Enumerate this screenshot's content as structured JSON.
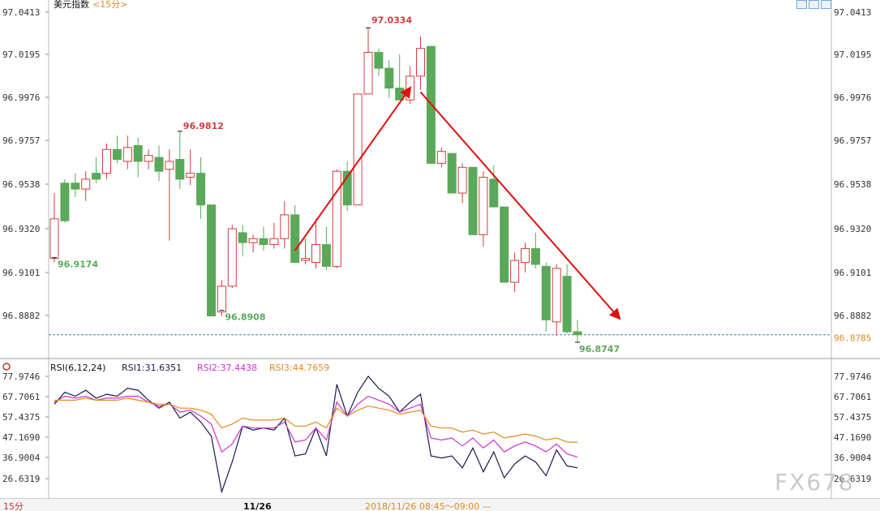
{
  "header": {
    "instrument": "美元指数",
    "period": "<15分>"
  },
  "rsi_header": {
    "name": "RSI(6,12,24)",
    "rsi1_label": "RSI1:31.6351",
    "rsi2_label": "RSI2:37.4438",
    "rsi3_label": "RSI3:44.7659"
  },
  "footer": {
    "period_button": "15分",
    "date_label": "11/26",
    "time_label": "2018/11/26 08:45～09:00 —"
  },
  "watermark": "FX678",
  "colors": {
    "up": "#d23c3c",
    "down": "#5aa85a",
    "rsi1": "#1a1a4a",
    "rsi2": "#cc33cc",
    "rsi3": "#e08a20",
    "arrow": "#e01010",
    "current_line": "#2a8aa0",
    "current_label": "#e08a20"
  },
  "chart_data": [
    {
      "type": "candlestick",
      "title": "美元指数<15分>",
      "y_tick_labels": [
        "97.0413",
        "97.0195",
        "96.9976",
        "96.9757",
        "96.9538",
        "96.9320",
        "96.9101",
        "96.8882"
      ],
      "ylim": [
        96.87,
        97.042
      ],
      "current_price": "96.8785",
      "annotations": {
        "high_1": "96.9812",
        "high_2": "97.0334",
        "low_1": "96.9174",
        "low_2": "96.8908",
        "low_3": "96.8747"
      },
      "candles": [
        {
          "o": 96.917,
          "h": 96.95,
          "l": 96.915,
          "c": 96.937
        },
        {
          "o": 96.955,
          "h": 96.957,
          "l": 96.935,
          "c": 96.936
        },
        {
          "o": 96.955,
          "h": 96.96,
          "l": 96.948,
          "c": 96.952
        },
        {
          "o": 96.952,
          "h": 96.961,
          "l": 96.946,
          "c": 96.957
        },
        {
          "o": 96.96,
          "h": 96.968,
          "l": 96.955,
          "c": 96.957
        },
        {
          "o": 96.96,
          "h": 96.975,
          "l": 96.957,
          "c": 96.972
        },
        {
          "o": 96.972,
          "h": 96.979,
          "l": 96.965,
          "c": 96.967
        },
        {
          "o": 96.966,
          "h": 96.979,
          "l": 96.962,
          "c": 96.973
        },
        {
          "o": 96.974,
          "h": 96.978,
          "l": 96.958,
          "c": 96.966
        },
        {
          "o": 96.966,
          "h": 96.972,
          "l": 96.962,
          "c": 96.969
        },
        {
          "o": 96.968,
          "h": 96.974,
          "l": 96.956,
          "c": 96.961
        },
        {
          "o": 96.962,
          "h": 96.972,
          "l": 96.926,
          "c": 96.966
        },
        {
          "o": 96.967,
          "h": 96.981,
          "l": 96.952,
          "c": 96.957
        },
        {
          "o": 96.958,
          "h": 96.972,
          "l": 96.954,
          "c": 96.96
        },
        {
          "o": 96.96,
          "h": 96.968,
          "l": 96.937,
          "c": 96.944
        },
        {
          "o": 96.944,
          "h": 96.944,
          "l": 96.888,
          "c": 96.888
        },
        {
          "o": 96.89,
          "h": 96.906,
          "l": 96.888,
          "c": 96.903
        },
        {
          "o": 96.903,
          "h": 96.934,
          "l": 96.902,
          "c": 96.932
        },
        {
          "o": 96.93,
          "h": 96.934,
          "l": 96.918,
          "c": 96.925
        },
        {
          "o": 96.925,
          "h": 96.929,
          "l": 96.92,
          "c": 96.927
        },
        {
          "o": 96.927,
          "h": 96.933,
          "l": 96.921,
          "c": 96.924
        },
        {
          "o": 96.924,
          "h": 96.935,
          "l": 96.922,
          "c": 96.927
        },
        {
          "o": 96.927,
          "h": 96.946,
          "l": 96.922,
          "c": 96.939
        },
        {
          "o": 96.939,
          "h": 96.944,
          "l": 96.915,
          "c": 96.915
        },
        {
          "o": 96.916,
          "h": 96.927,
          "l": 96.914,
          "c": 96.917
        },
        {
          "o": 96.915,
          "h": 96.937,
          "l": 96.912,
          "c": 96.924
        },
        {
          "o": 96.924,
          "h": 96.933,
          "l": 96.911,
          "c": 96.913
        },
        {
          "o": 96.913,
          "h": 96.962,
          "l": 96.912,
          "c": 96.961
        },
        {
          "o": 96.961,
          "h": 96.966,
          "l": 96.941,
          "c": 96.944
        },
        {
          "o": 96.944,
          "h": 97.0,
          "l": 96.944,
          "c": 97.0
        },
        {
          "o": 97.0,
          "h": 97.033,
          "l": 97.0,
          "c": 97.021
        },
        {
          "o": 97.021,
          "h": 97.023,
          "l": 97.009,
          "c": 97.013
        },
        {
          "o": 97.013,
          "h": 97.017,
          "l": 96.998,
          "c": 97.003
        },
        {
          "o": 97.003,
          "h": 97.02,
          "l": 96.998,
          "c": 96.997
        },
        {
          "o": 96.997,
          "h": 97.014,
          "l": 96.995,
          "c": 97.009
        },
        {
          "o": 97.009,
          "h": 97.029,
          "l": 97.002,
          "c": 97.023
        },
        {
          "o": 97.024,
          "h": 97.024,
          "l": 96.965,
          "c": 96.965
        },
        {
          "o": 96.965,
          "h": 96.973,
          "l": 96.963,
          "c": 96.971
        },
        {
          "o": 96.97,
          "h": 96.97,
          "l": 96.95,
          "c": 96.95
        },
        {
          "o": 96.95,
          "h": 96.965,
          "l": 96.945,
          "c": 96.963
        },
        {
          "o": 96.963,
          "h": 96.963,
          "l": 96.929,
          "c": 96.929
        },
        {
          "o": 96.929,
          "h": 96.961,
          "l": 96.923,
          "c": 96.958
        },
        {
          "o": 96.957,
          "h": 96.964,
          "l": 96.943,
          "c": 96.943
        },
        {
          "o": 96.943,
          "h": 96.943,
          "l": 96.905,
          "c": 96.905
        },
        {
          "o": 96.905,
          "h": 96.92,
          "l": 96.9,
          "c": 96.916
        },
        {
          "o": 96.915,
          "h": 96.925,
          "l": 96.91,
          "c": 96.922
        },
        {
          "o": 96.922,
          "h": 96.93,
          "l": 96.912,
          "c": 96.914
        },
        {
          "o": 96.913,
          "h": 96.915,
          "l": 96.88,
          "c": 96.886
        },
        {
          "o": 96.885,
          "h": 96.914,
          "l": 96.878,
          "c": 96.912
        },
        {
          "o": 96.908,
          "h": 96.914,
          "l": 96.879,
          "c": 96.88
        },
        {
          "o": 96.88,
          "h": 96.886,
          "l": 96.875,
          "c": 96.8785
        }
      ],
      "arrows": [
        {
          "from": [
            23,
            96.921
          ],
          "to": [
            34,
            97.003
          ]
        },
        {
          "from": [
            35,
            97.001
          ],
          "to": [
            54,
            96.8868
          ]
        }
      ]
    },
    {
      "type": "line",
      "title": "RSI(6,12,24)",
      "y_tick_labels": [
        "77.9746",
        "67.7061",
        "57.4375",
        "47.1690",
        "36.9004",
        "26.6319"
      ],
      "ylim": [
        19.0,
        80.0
      ],
      "series": [
        {
          "name": "RSI1",
          "values": [
            64,
            70,
            68,
            71,
            67,
            69,
            68,
            72,
            71,
            66,
            62,
            65,
            57,
            60,
            55,
            48,
            20,
            35,
            53,
            51,
            52,
            51,
            57,
            38,
            39,
            52,
            38,
            74,
            58,
            70,
            78,
            72,
            68,
            60,
            65,
            69,
            38,
            37,
            38,
            32,
            42,
            30,
            40,
            27,
            34,
            38,
            35,
            28,
            41,
            33,
            32
          ]
        },
        {
          "name": "RSI2",
          "values": [
            65,
            68,
            67,
            68,
            66,
            67,
            67,
            68,
            68,
            65,
            63,
            64,
            60,
            61,
            58,
            54,
            40,
            44,
            53,
            52,
            52,
            52,
            55,
            45,
            46,
            52,
            46,
            65,
            58,
            64,
            68,
            66,
            64,
            60,
            62,
            64,
            47,
            46,
            47,
            43,
            47,
            42,
            46,
            40,
            43,
            45,
            43,
            40,
            44,
            39,
            37.4
          ]
        },
        {
          "name": "RSI3",
          "values": [
            66,
            66,
            66,
            67,
            66,
            66,
            66,
            67,
            66,
            65,
            64,
            64,
            62,
            62,
            61,
            59,
            52,
            54,
            57,
            56,
            56,
            56,
            57,
            53,
            53,
            55,
            52,
            62,
            58,
            61,
            63,
            62,
            61,
            59,
            60,
            61,
            53,
            52,
            52,
            50,
            51,
            49,
            50,
            47,
            48,
            49,
            48,
            46,
            47,
            45,
            44.8
          ]
        }
      ]
    }
  ]
}
